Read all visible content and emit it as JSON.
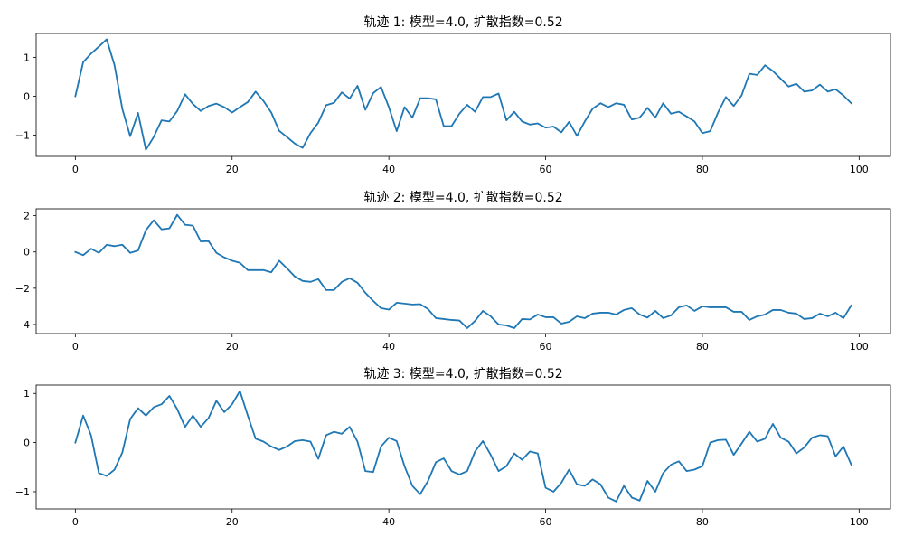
{
  "chart_data": [
    {
      "type": "line",
      "title": "轨迹 1: 模型=4.0, 扩散指数=0.52",
      "xlabel": "",
      "ylabel": "",
      "xlim": [
        -5,
        104
      ],
      "ylim": [
        -1.55,
        1.62
      ],
      "xticks": [
        0,
        20,
        40,
        60,
        80,
        100
      ],
      "yticks": [
        -1,
        0,
        1
      ],
      "grid": false,
      "color": "#1f77b4",
      "series": [
        {
          "x": [
            0,
            1,
            2,
            3,
            4,
            5,
            6,
            7,
            8,
            9,
            10,
            11,
            12,
            13,
            14,
            15,
            16,
            17,
            18,
            19,
            20,
            21,
            22,
            23,
            24,
            25,
            26,
            27,
            28,
            29,
            30,
            31,
            32,
            33,
            34,
            35,
            36,
            37,
            38,
            39,
            40,
            41,
            42,
            43,
            44,
            45,
            46,
            47,
            48,
            49,
            50,
            51,
            52,
            53,
            54,
            55,
            56,
            57,
            58,
            59,
            60,
            61,
            62,
            63,
            64,
            65,
            66,
            67,
            68,
            69,
            70,
            71,
            72,
            73,
            74,
            75,
            76,
            77,
            78,
            79,
            80,
            81,
            82,
            83,
            84,
            85,
            86,
            87,
            88,
            89,
            90,
            91,
            92,
            93,
            94,
            95,
            96,
            97,
            98,
            99
          ],
          "values": [
            0.0,
            0.88,
            1.1,
            1.28,
            1.47,
            0.8,
            -0.33,
            -1.03,
            -0.43,
            -1.38,
            -1.05,
            -0.62,
            -0.65,
            -0.38,
            0.05,
            -0.2,
            -0.38,
            -0.25,
            -0.19,
            -0.28,
            -0.42,
            -0.28,
            -0.15,
            0.12,
            -0.12,
            -0.42,
            -0.89,
            -1.05,
            -1.22,
            -1.33,
            -0.95,
            -0.68,
            -0.23,
            -0.17,
            0.1,
            -0.06,
            0.27,
            -0.35,
            0.08,
            0.24,
            -0.28,
            -0.9,
            -0.28,
            -0.55,
            -0.05,
            -0.05,
            -0.08,
            -0.77,
            -0.77,
            -0.45,
            -0.22,
            -0.4,
            -0.02,
            -0.02,
            0.07,
            -0.62,
            -0.4,
            -0.65,
            -0.73,
            -0.7,
            -0.81,
            -0.78,
            -0.93,
            -0.66,
            -1.02,
            -0.65,
            -0.32,
            -0.18,
            -0.28,
            -0.18,
            -0.22,
            -0.6,
            -0.55,
            -0.3,
            -0.55,
            -0.18,
            -0.45,
            -0.4,
            -0.52,
            -0.65,
            -0.95,
            -0.9,
            -0.42,
            -0.02,
            -0.25,
            0.02,
            0.58,
            0.55,
            0.8,
            0.65,
            0.45,
            0.25,
            0.32,
            0.12,
            0.15,
            0.3,
            0.12,
            0.18,
            0.02,
            -0.18
          ]
        }
      ]
    },
    {
      "type": "line",
      "title": "轨迹 2: 模型=4.0, 扩散指数=0.52",
      "xlabel": "",
      "ylabel": "",
      "xlim": [
        -5,
        104
      ],
      "ylim": [
        -4.5,
        2.38
      ],
      "xticks": [
        0,
        20,
        40,
        60,
        80,
        100
      ],
      "yticks": [
        -4,
        -2,
        0,
        2
      ],
      "grid": false,
      "color": "#1f77b4",
      "series": [
        {
          "x": [
            0,
            1,
            2,
            3,
            4,
            5,
            6,
            7,
            8,
            9,
            10,
            11,
            12,
            13,
            14,
            15,
            16,
            17,
            18,
            19,
            20,
            21,
            22,
            23,
            24,
            25,
            26,
            27,
            28,
            29,
            30,
            31,
            32,
            33,
            34,
            35,
            36,
            37,
            38,
            39,
            40,
            41,
            42,
            43,
            44,
            45,
            46,
            47,
            48,
            49,
            50,
            51,
            52,
            53,
            54,
            55,
            56,
            57,
            58,
            59,
            60,
            61,
            62,
            63,
            64,
            65,
            66,
            67,
            68,
            69,
            70,
            71,
            72,
            73,
            74,
            75,
            76,
            77,
            78,
            79,
            80,
            81,
            82,
            83,
            84,
            85,
            86,
            87,
            88,
            89,
            90,
            91,
            92,
            93,
            94,
            95,
            96,
            97,
            98,
            99
          ],
          "values": [
            0.0,
            -0.18,
            0.18,
            -0.05,
            0.4,
            0.32,
            0.4,
            -0.05,
            0.08,
            1.2,
            1.75,
            1.25,
            1.3,
            2.05,
            1.5,
            1.45,
            0.58,
            0.6,
            -0.05,
            -0.3,
            -0.48,
            -0.6,
            -1.0,
            -1.0,
            -1.0,
            -1.12,
            -0.48,
            -0.9,
            -1.35,
            -1.6,
            -1.65,
            -1.5,
            -2.1,
            -2.1,
            -1.65,
            -1.45,
            -1.7,
            -2.25,
            -2.7,
            -3.1,
            -3.18,
            -2.8,
            -2.85,
            -2.9,
            -2.88,
            -3.15,
            -3.65,
            -3.7,
            -3.75,
            -3.78,
            -4.2,
            -3.8,
            -3.25,
            -3.55,
            -4.0,
            -4.05,
            -4.2,
            -3.7,
            -3.72,
            -3.45,
            -3.6,
            -3.6,
            -3.95,
            -3.85,
            -3.55,
            -3.65,
            -3.4,
            -3.35,
            -3.35,
            -3.45,
            -3.2,
            -3.1,
            -3.45,
            -3.62,
            -3.25,
            -3.65,
            -3.5,
            -3.05,
            -2.95,
            -3.25,
            -3.0,
            -3.05,
            -3.05,
            -3.05,
            -3.3,
            -3.3,
            -3.75,
            -3.55,
            -3.45,
            -3.2,
            -3.2,
            -3.35,
            -3.4,
            -3.7,
            -3.65,
            -3.4,
            -3.55,
            -3.35,
            -3.65,
            -2.95
          ]
        }
      ]
    },
    {
      "type": "line",
      "title": "轨迹 3: 模型=4.0, 扩散指数=0.52",
      "xlabel": "",
      "ylabel": "",
      "xlim": [
        -5,
        104
      ],
      "ylim": [
        -1.35,
        1.17
      ],
      "xticks": [
        0,
        20,
        40,
        60,
        80,
        100
      ],
      "yticks": [
        -1,
        0,
        1
      ],
      "grid": false,
      "color": "#1f77b4",
      "series": [
        {
          "x": [
            0,
            1,
            2,
            3,
            4,
            5,
            6,
            7,
            8,
            9,
            10,
            11,
            12,
            13,
            14,
            15,
            16,
            17,
            18,
            19,
            20,
            21,
            22,
            23,
            24,
            25,
            26,
            27,
            28,
            29,
            30,
            31,
            32,
            33,
            34,
            35,
            36,
            37,
            38,
            39,
            40,
            41,
            42,
            43,
            44,
            45,
            46,
            47,
            48,
            49,
            50,
            51,
            52,
            53,
            54,
            55,
            56,
            57,
            58,
            59,
            60,
            61,
            62,
            63,
            64,
            65,
            66,
            67,
            68,
            69,
            70,
            71,
            72,
            73,
            74,
            75,
            76,
            77,
            78,
            79,
            80,
            81,
            82,
            83,
            84,
            85,
            86,
            87,
            88,
            89,
            90,
            91,
            92,
            93,
            94,
            95,
            96,
            97,
            98,
            99
          ],
          "values": [
            0.0,
            0.55,
            0.15,
            -0.62,
            -0.68,
            -0.55,
            -0.2,
            0.48,
            0.7,
            0.55,
            0.72,
            0.78,
            0.95,
            0.68,
            0.32,
            0.55,
            0.32,
            0.5,
            0.85,
            0.62,
            0.78,
            1.05,
            0.55,
            0.08,
            0.02,
            -0.08,
            -0.15,
            -0.08,
            0.03,
            0.05,
            0.02,
            -0.33,
            0.15,
            0.22,
            0.18,
            0.32,
            0.02,
            -0.58,
            -0.6,
            -0.08,
            0.1,
            0.03,
            -0.48,
            -0.88,
            -1.05,
            -0.78,
            -0.4,
            -0.32,
            -0.58,
            -0.65,
            -0.58,
            -0.18,
            0.03,
            -0.25,
            -0.58,
            -0.48,
            -0.22,
            -0.35,
            -0.18,
            -0.22,
            -0.92,
            -1.0,
            -0.82,
            -0.55,
            -0.85,
            -0.88,
            -0.75,
            -0.85,
            -1.12,
            -1.2,
            -0.88,
            -1.12,
            -1.18,
            -0.78,
            -1.0,
            -0.62,
            -0.45,
            -0.38,
            -0.58,
            -0.55,
            -0.48,
            0.0,
            0.05,
            0.06,
            -0.25,
            -0.02,
            0.22,
            0.02,
            0.08,
            0.38,
            0.1,
            0.02,
            -0.22,
            -0.1,
            0.1,
            0.15,
            0.13,
            -0.28,
            -0.08,
            -0.45
          ]
        }
      ]
    }
  ]
}
